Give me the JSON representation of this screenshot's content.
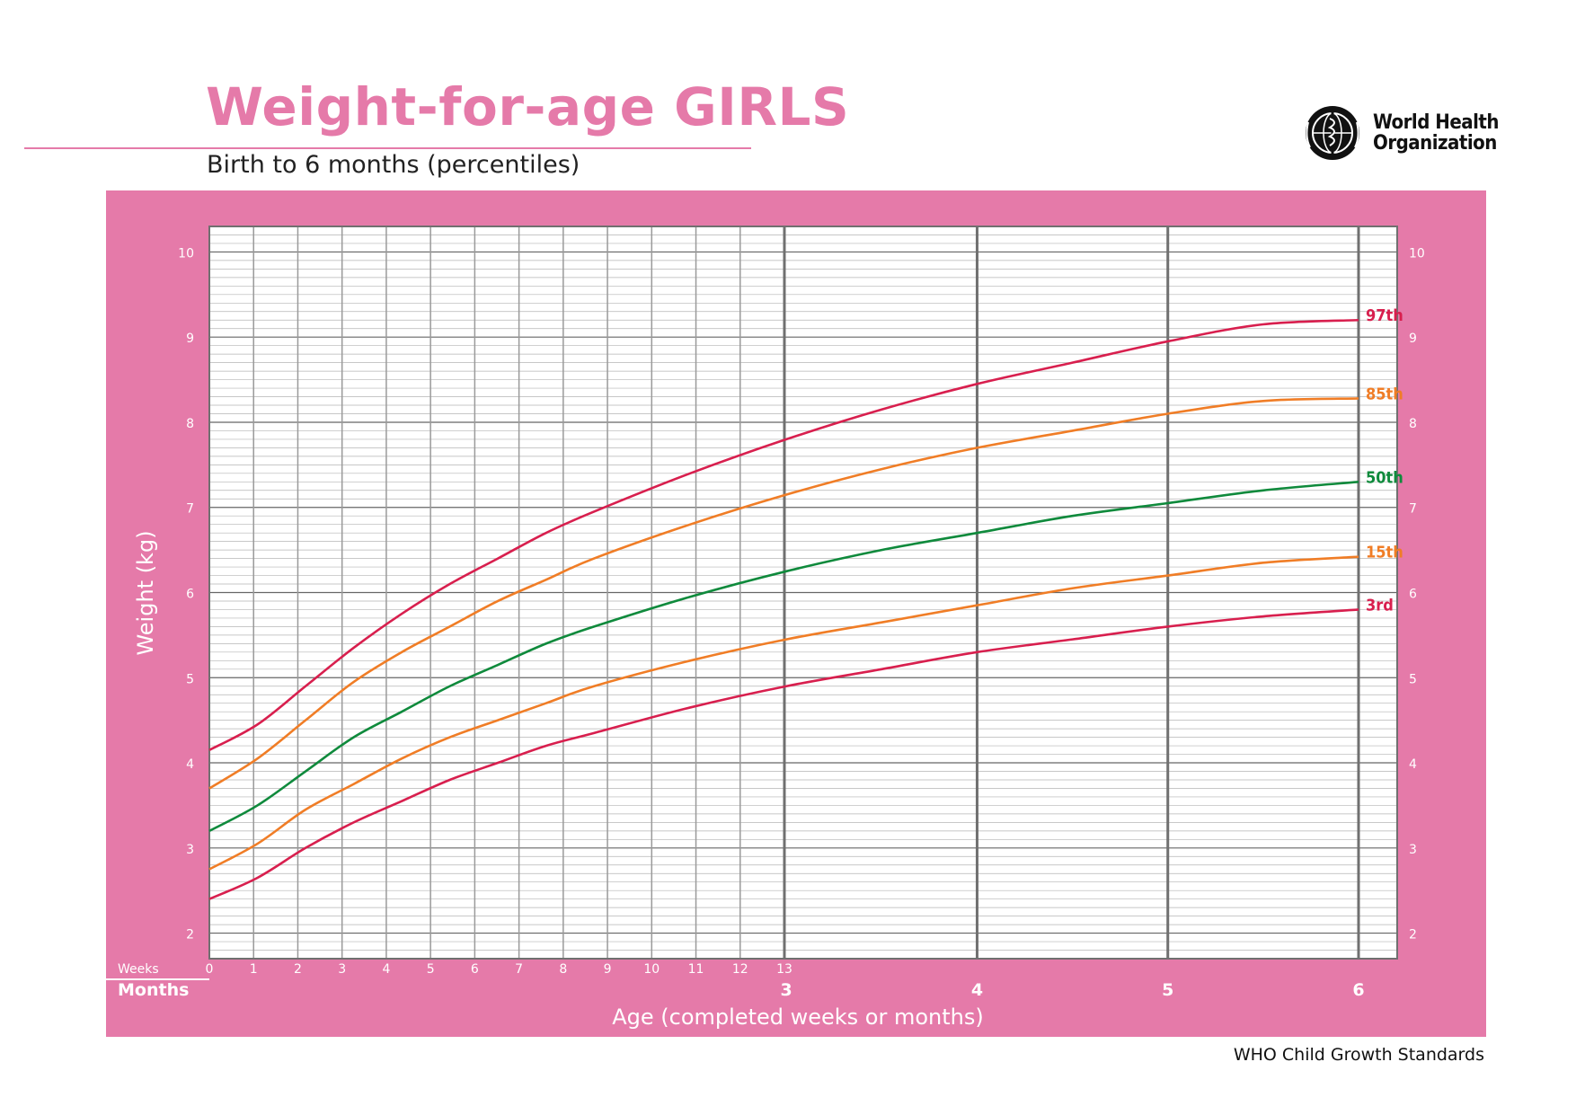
{
  "header": {
    "title": "Weight-for-age GIRLS",
    "subtitle": "Birth to 6 months (percentiles)",
    "logo_text_line1": "World Health",
    "logo_text_line2": "Organization",
    "accent_color": "#e57aa9"
  },
  "footer": {
    "text": "WHO Child Growth Standards"
  },
  "chart_data": {
    "type": "line",
    "title": "Weight-for-age GIRLS",
    "subtitle": "Birth to 6 months (percentiles)",
    "xlabel": "Age (completed weeks or months)",
    "ylabel": "Weight (kg)",
    "xlim": [
      0,
      6
    ],
    "ylim": [
      1.7,
      10.3
    ],
    "y_ticks": [
      2,
      3,
      4,
      5,
      6,
      7,
      8,
      9,
      10
    ],
    "week_tick_label": "Weeks",
    "week_ticks": [
      "0",
      "1",
      "2",
      "3",
      "4",
      "5",
      "6",
      "7",
      "8",
      "9",
      "10",
      "11",
      "12",
      "13"
    ],
    "month_tick_label": "Months",
    "month_ticks": [
      "3",
      "4",
      "5",
      "6"
    ],
    "grid": true,
    "legend": "labels at right end of each curve",
    "x_unit": "months",
    "x": [
      0,
      0.25,
      0.5,
      0.75,
      1,
      1.25,
      1.5,
      1.75,
      2,
      2.5,
      3,
      3.5,
      4,
      4.5,
      5,
      5.5,
      6
    ],
    "series": [
      {
        "name": "97th",
        "color": "#d81f4e",
        "values": [
          4.15,
          4.45,
          4.9,
          5.35,
          5.75,
          6.1,
          6.4,
          6.7,
          6.95,
          7.4,
          7.8,
          8.15,
          8.45,
          8.7,
          8.95,
          9.15,
          9.2
        ]
      },
      {
        "name": "85th",
        "color": "#f07d26",
        "values": [
          3.7,
          4.05,
          4.5,
          4.95,
          5.3,
          5.6,
          5.9,
          6.15,
          6.4,
          6.8,
          7.15,
          7.45,
          7.7,
          7.9,
          8.1,
          8.25,
          8.28
        ]
      },
      {
        "name": "50th",
        "color": "#0f8a3c",
        "values": [
          3.2,
          3.5,
          3.9,
          4.3,
          4.6,
          4.9,
          5.15,
          5.4,
          5.6,
          5.95,
          6.25,
          6.5,
          6.7,
          6.9,
          7.05,
          7.2,
          7.3
        ]
      },
      {
        "name": "15th",
        "color": "#f07d26",
        "values": [
          2.75,
          3.05,
          3.45,
          3.75,
          4.05,
          4.3,
          4.5,
          4.7,
          4.9,
          5.2,
          5.45,
          5.65,
          5.85,
          6.05,
          6.2,
          6.35,
          6.42
        ]
      },
      {
        "name": "3rd",
        "color": "#d81f4e",
        "values": [
          2.4,
          2.65,
          3.0,
          3.3,
          3.55,
          3.8,
          4.0,
          4.2,
          4.35,
          4.65,
          4.9,
          5.1,
          5.3,
          5.45,
          5.6,
          5.72,
          5.8
        ]
      }
    ],
    "colors": {
      "frame": "#e57aa9",
      "grid": "#9a9a9a",
      "major_grid": "#707070"
    }
  }
}
